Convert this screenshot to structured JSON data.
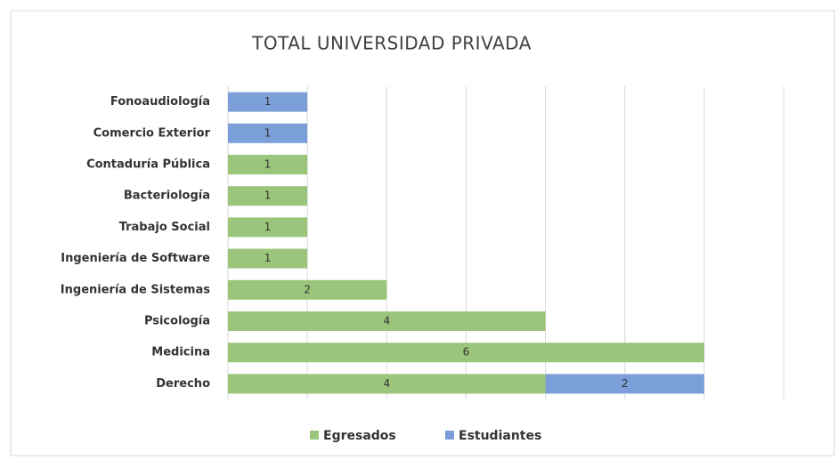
{
  "chart_data": {
    "type": "bar",
    "stacked": true,
    "orientation": "horizontal",
    "title": "TOTAL UNIVERSIDAD PRIVADA",
    "categories": [
      "Fonoaudiología",
      "Comercio Exterior",
      "Contaduría Pública",
      "Bacteriología",
      "Trabajo Social",
      "Ingeniería de Software",
      "Ingeniería de Sistemas",
      "Psicología",
      "Medicina",
      "Derecho"
    ],
    "series": [
      {
        "name": "Egresados",
        "color": "#9bc57b",
        "values": [
          null,
          null,
          1,
          1,
          1,
          1,
          2,
          4,
          6,
          4
        ]
      },
      {
        "name": "Estudiantes",
        "color": "#7b9fd8",
        "values": [
          1,
          1,
          null,
          null,
          null,
          null,
          null,
          null,
          null,
          2
        ]
      }
    ],
    "xlim": [
      0,
      7
    ],
    "xticks": [
      0,
      1,
      2,
      3,
      4,
      5,
      6,
      7
    ],
    "grid": true,
    "legend": "bottom"
  }
}
